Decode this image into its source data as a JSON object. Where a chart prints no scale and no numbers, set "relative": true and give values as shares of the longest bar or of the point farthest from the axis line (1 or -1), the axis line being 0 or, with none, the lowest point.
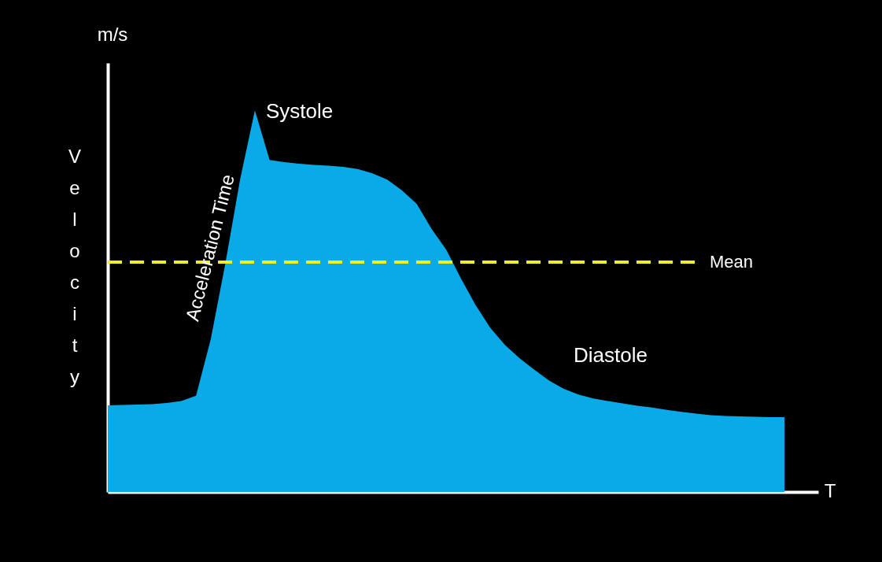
{
  "chart_data": {
    "type": "area",
    "relative": true,
    "xlabel": "T",
    "ylabel": "Velocity",
    "categories": [
      null,
      null,
      null,
      null,
      null,
      null,
      null,
      null,
      null,
      null,
      null,
      null,
      null,
      null,
      null,
      null,
      null,
      null,
      null,
      null,
      null,
      null,
      null,
      null,
      null,
      null,
      null,
      null,
      null,
      null,
      null,
      null,
      null,
      null,
      null,
      null,
      null,
      null,
      null,
      null,
      null,
      null,
      null,
      null,
      null,
      null,
      null
    ],
    "series": [
      {
        "color": "#0aaae8",
        "values": [
          0.227,
          0.228,
          0.229,
          0.23,
          0.233,
          0.238,
          0.252,
          0.4,
          0.6,
          0.82,
          1.0,
          0.87,
          0.864,
          0.86,
          0.857,
          0.855,
          0.852,
          0.846,
          0.835,
          0.818,
          0.79,
          0.755,
          0.69,
          0.635,
          0.56,
          0.49,
          0.43,
          0.385,
          0.35,
          0.32,
          0.292,
          0.27,
          0.255,
          0.245,
          0.238,
          0.232,
          0.226,
          0.221,
          0.215,
          0.21,
          0.205,
          0.201,
          0.199,
          0.198,
          0.197,
          0.196,
          0.196
        ]
      }
    ],
    "ref_lines": [
      {
        "axis": "y",
        "value": 0.602,
        "label": "Mean",
        "color": "#f0f020",
        "line_style": "dashed"
      }
    ],
    "annotations": [
      "m/s",
      "Systole",
      "Acceleration Time",
      "Diastole"
    ],
    "grid": false
  }
}
